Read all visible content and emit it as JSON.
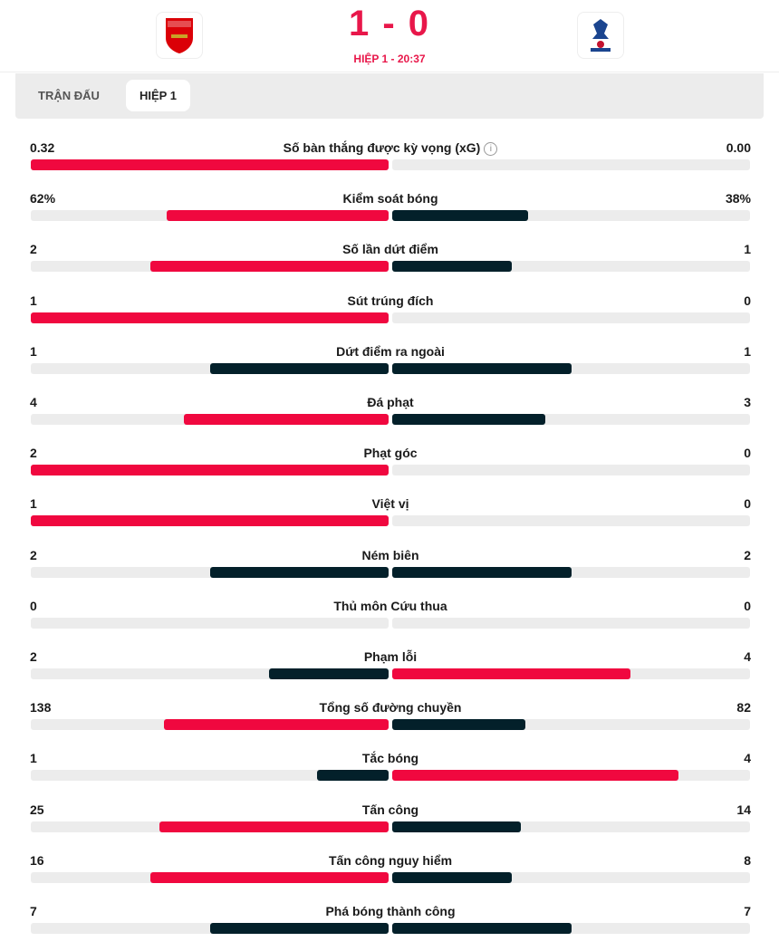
{
  "match": {
    "home": "Arsenal",
    "away": "Crystal Palace",
    "score": "1 - 0",
    "period": "HIỆP 1 - 20:37"
  },
  "tabs": [
    {
      "label": "TRẬN ĐẤU",
      "active": false
    },
    {
      "label": "HIỆP 1",
      "active": true
    }
  ],
  "colors": {
    "leader": "#f0083f",
    "trailer": "#03202a",
    "track": "#ececec"
  },
  "stats": [
    {
      "label": "Số bàn thắng được kỳ vọng (xG)",
      "home": "0.32",
      "away": "0.00",
      "home_frac": 1,
      "away_frac": 0,
      "info": true
    },
    {
      "label": "Kiểm soát bóng",
      "home": "62%",
      "away": "38%",
      "home_frac": 0.62,
      "away_frac": 0.38
    },
    {
      "label": "Số lần dứt điểm",
      "home": "2",
      "away": "1",
      "home_frac": 0.667,
      "away_frac": 0.333
    },
    {
      "label": "Sút trúng đích",
      "home": "1",
      "away": "0",
      "home_frac": 1,
      "away_frac": 0
    },
    {
      "label": "Dứt điểm ra ngoài",
      "home": "1",
      "away": "1",
      "home_frac": 0.5,
      "away_frac": 0.5
    },
    {
      "label": "Đá phạt",
      "home": "4",
      "away": "3",
      "home_frac": 0.571,
      "away_frac": 0.429
    },
    {
      "label": "Phạt góc",
      "home": "2",
      "away": "0",
      "home_frac": 1,
      "away_frac": 0
    },
    {
      "label": "Việt vị",
      "home": "1",
      "away": "0",
      "home_frac": 1,
      "away_frac": 0
    },
    {
      "label": "Ném biên",
      "home": "2",
      "away": "2",
      "home_frac": 0.5,
      "away_frac": 0.5
    },
    {
      "label": "Thủ môn Cứu thua",
      "home": "0",
      "away": "0",
      "home_frac": 0,
      "away_frac": 0
    },
    {
      "label": "Phạm lỗi",
      "home": "2",
      "away": "4",
      "home_frac": 0.333,
      "away_frac": 0.667
    },
    {
      "label": "Tổng số đường chuyền",
      "home": "138",
      "away": "82",
      "home_frac": 0.627,
      "away_frac": 0.373
    },
    {
      "label": "Tắc bóng",
      "home": "1",
      "away": "4",
      "home_frac": 0.2,
      "away_frac": 0.8
    },
    {
      "label": "Tấn công",
      "home": "25",
      "away": "14",
      "home_frac": 0.641,
      "away_frac": 0.359
    },
    {
      "label": "Tấn công nguy hiểm",
      "home": "16",
      "away": "8",
      "home_frac": 0.667,
      "away_frac": 0.333
    },
    {
      "label": "Phá bóng thành công",
      "home": "7",
      "away": "7",
      "home_frac": 0.5,
      "away_frac": 0.5
    }
  ]
}
